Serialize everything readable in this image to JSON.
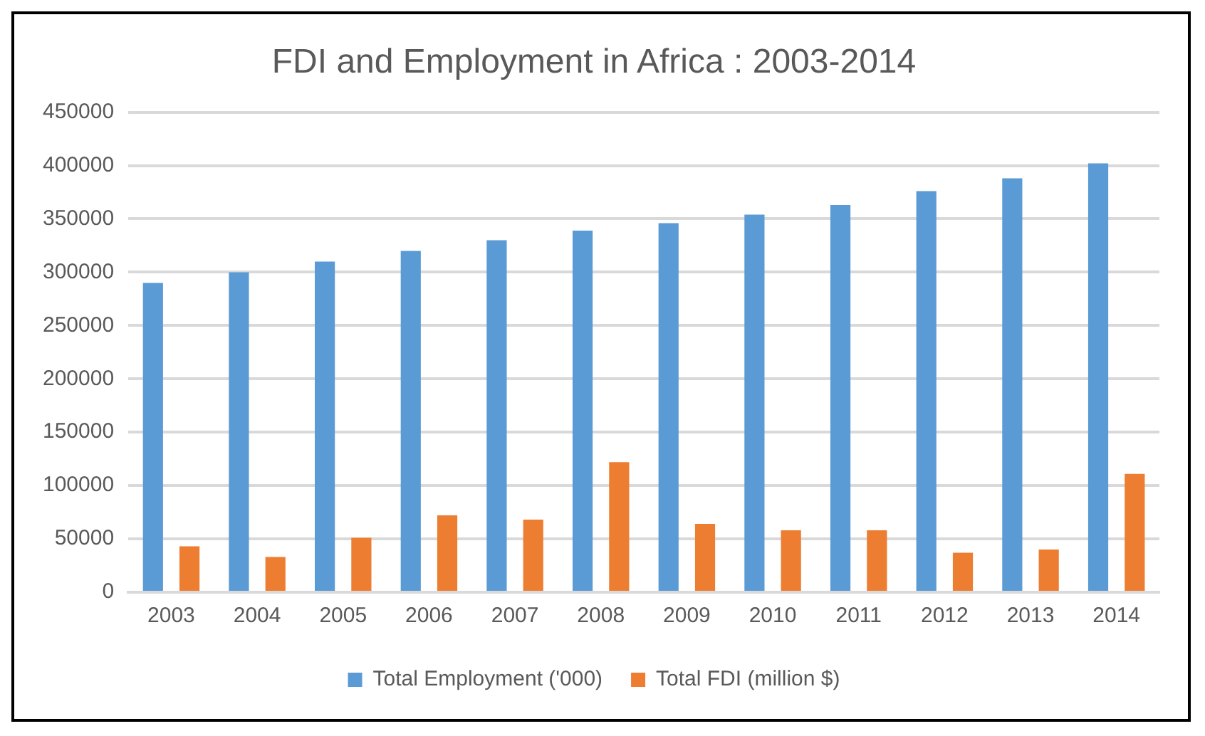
{
  "chart_data": {
    "type": "bar",
    "title": "FDI and Employment in Africa : 2003-2014",
    "categories": [
      "2003",
      "2004",
      "2005",
      "2006",
      "2007",
      "2008",
      "2009",
      "2010",
      "2011",
      "2012",
      "2013",
      "2014"
    ],
    "series": [
      {
        "name": "Total Employment ('000)",
        "color": "#5b9bd5",
        "values": [
          290000,
          300000,
          310000,
          320000,
          330000,
          339000,
          346000,
          354000,
          363000,
          376000,
          388000,
          402000
        ]
      },
      {
        "name": "Total FDI (million $)",
        "color": "#ed7d31",
        "values": [
          43000,
          33000,
          51000,
          72000,
          68000,
          122000,
          64000,
          58000,
          58000,
          37000,
          40000,
          111000
        ]
      }
    ],
    "ylim": [
      0,
      450000
    ],
    "yticks": [
      0,
      50000,
      100000,
      150000,
      200000,
      250000,
      300000,
      350000,
      400000,
      450000
    ],
    "grid": "y",
    "legend": "bottom"
  }
}
